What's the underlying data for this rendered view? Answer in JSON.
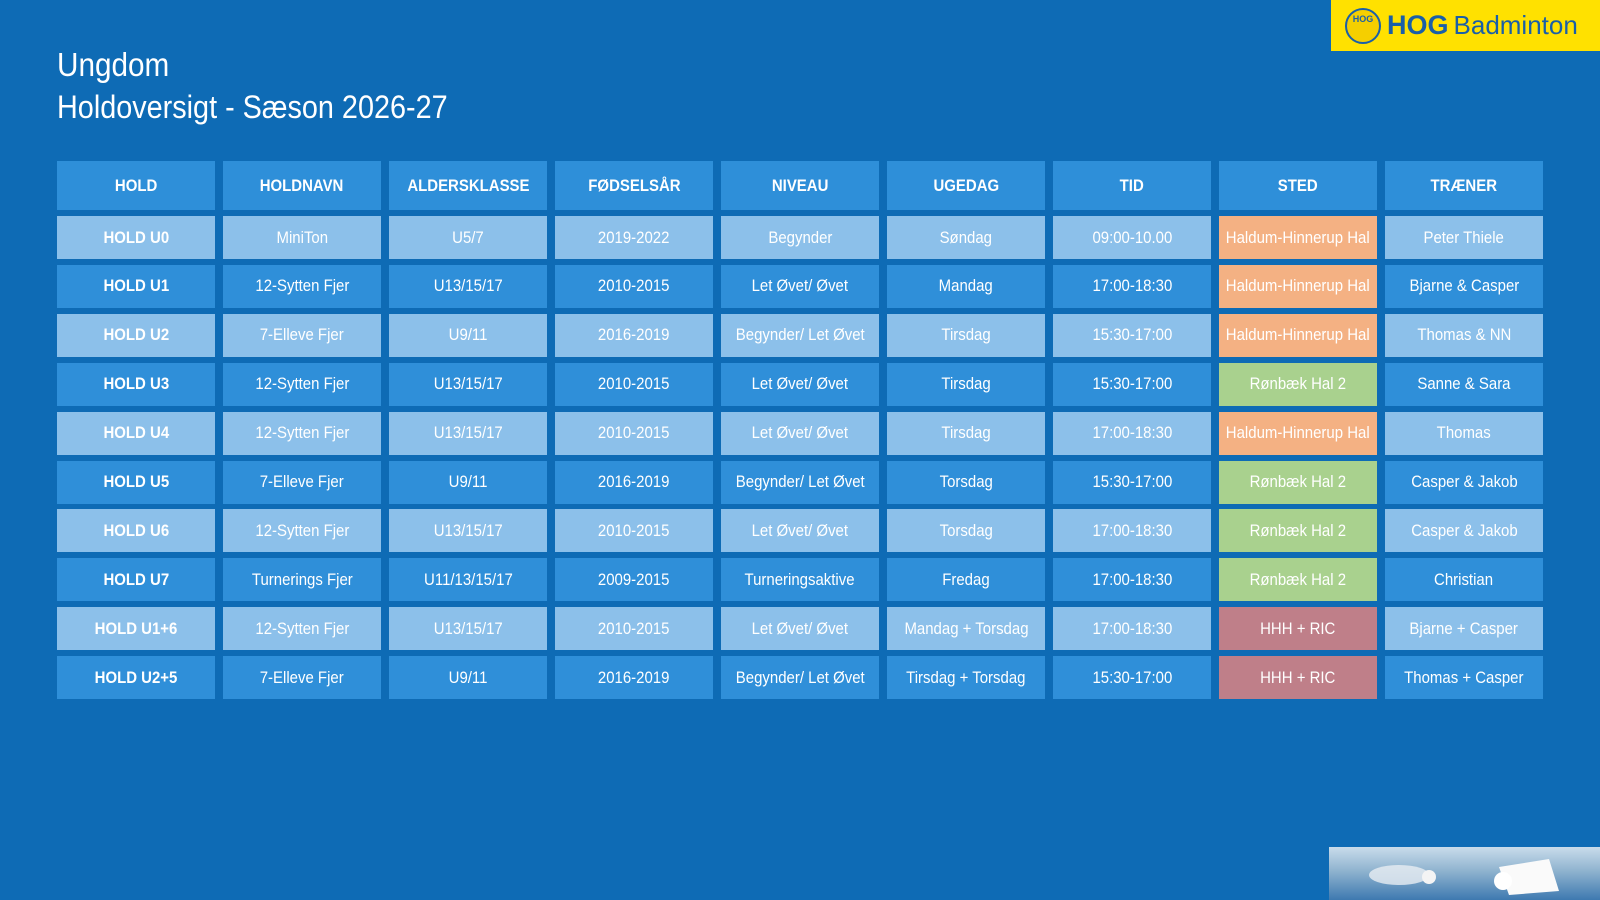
{
  "header": {
    "title": "Ungdom",
    "subtitle": "Holdoversigt - Sæson 2026-27"
  },
  "logo": {
    "emblem": "HOG",
    "name": "HOG",
    "suffix": "Badminton"
  },
  "table": {
    "columns": [
      "HOLD",
      "HOLDNAVN",
      "ALDERSKLASSE",
      "FØDSELSÅR",
      "NIVEAU",
      "UGEDAG",
      "TID",
      "STED",
      "TRÆNER"
    ],
    "rows": [
      [
        "HOLD U0",
        "MiniTon",
        "U5/7",
        "2019-2022",
        "Begynder",
        "Søndag",
        "09:00-10.00",
        "Haldum-Hinnerup Hal",
        "Peter Thiele"
      ],
      [
        "HOLD U1",
        "12-Sytten Fjer",
        "U13/15/17",
        "2010-2015",
        "Let Øvet/ Øvet",
        "Mandag",
        "17:00-18:30",
        "Haldum-Hinnerup Hal",
        "Bjarne & Casper"
      ],
      [
        "HOLD U2",
        "7-Elleve Fjer",
        "U9/11",
        "2016-2019",
        "Begynder/ Let Øvet",
        "Tirsdag",
        "15:30-17:00",
        "Haldum-Hinnerup Hal",
        "Thomas & NN"
      ],
      [
        "HOLD U3",
        "12-Sytten Fjer",
        "U13/15/17",
        "2010-2015",
        "Let Øvet/ Øvet",
        "Tirsdag",
        "15:30-17:00",
        "Rønbæk Hal 2",
        "Sanne & Sara"
      ],
      [
        "HOLD U4",
        "12-Sytten Fjer",
        "U13/15/17",
        "2010-2015",
        "Let Øvet/ Øvet",
        "Tirsdag",
        "17:00-18:30",
        "Haldum-Hinnerup Hal",
        "Thomas"
      ],
      [
        "HOLD U5",
        "7-Elleve Fjer",
        "U9/11",
        "2016-2019",
        "Begynder/ Let Øvet",
        "Torsdag",
        "15:30-17:00",
        "Rønbæk Hal 2",
        "Casper & Jakob"
      ],
      [
        "HOLD U6",
        "12-Sytten Fjer",
        "U13/15/17",
        "2010-2015",
        "Let Øvet/ Øvet",
        "Torsdag",
        "17:00-18:30",
        "Rønbæk Hal 2",
        "Casper & Jakob"
      ],
      [
        "HOLD U7",
        "Turnerings Fjer",
        "U11/13/15/17",
        "2009-2015",
        "Turneringsaktive",
        "Fredag",
        "17:00-18:30",
        "Rønbæk Hal 2",
        "Christian"
      ],
      [
        "HOLD U1+6",
        "12-Sytten Fjer",
        "U13/15/17",
        "2010-2015",
        "Let Øvet/ Øvet",
        "Mandag + Torsdag",
        "17:00-18:30",
        "HHH + RIC",
        "Bjarne + Casper"
      ],
      [
        "HOLD U2+5",
        "7-Elleve Fjer",
        "U9/11",
        "2016-2019",
        "Begynder/ Let Øvet",
        "Tirsdag + Torsdag",
        "15:30-17:00",
        "HHH + RIC",
        "Thomas + Casper"
      ]
    ],
    "location_colors": [
      {
        "name": "Haldum-Hinnerup Hal",
        "color": "#f4b183"
      },
      {
        "name": "Rønbæk Hal 2",
        "color": "#a9d18e"
      },
      {
        "name": "HHH + RIC",
        "color": "#bf7f89"
      }
    ]
  }
}
